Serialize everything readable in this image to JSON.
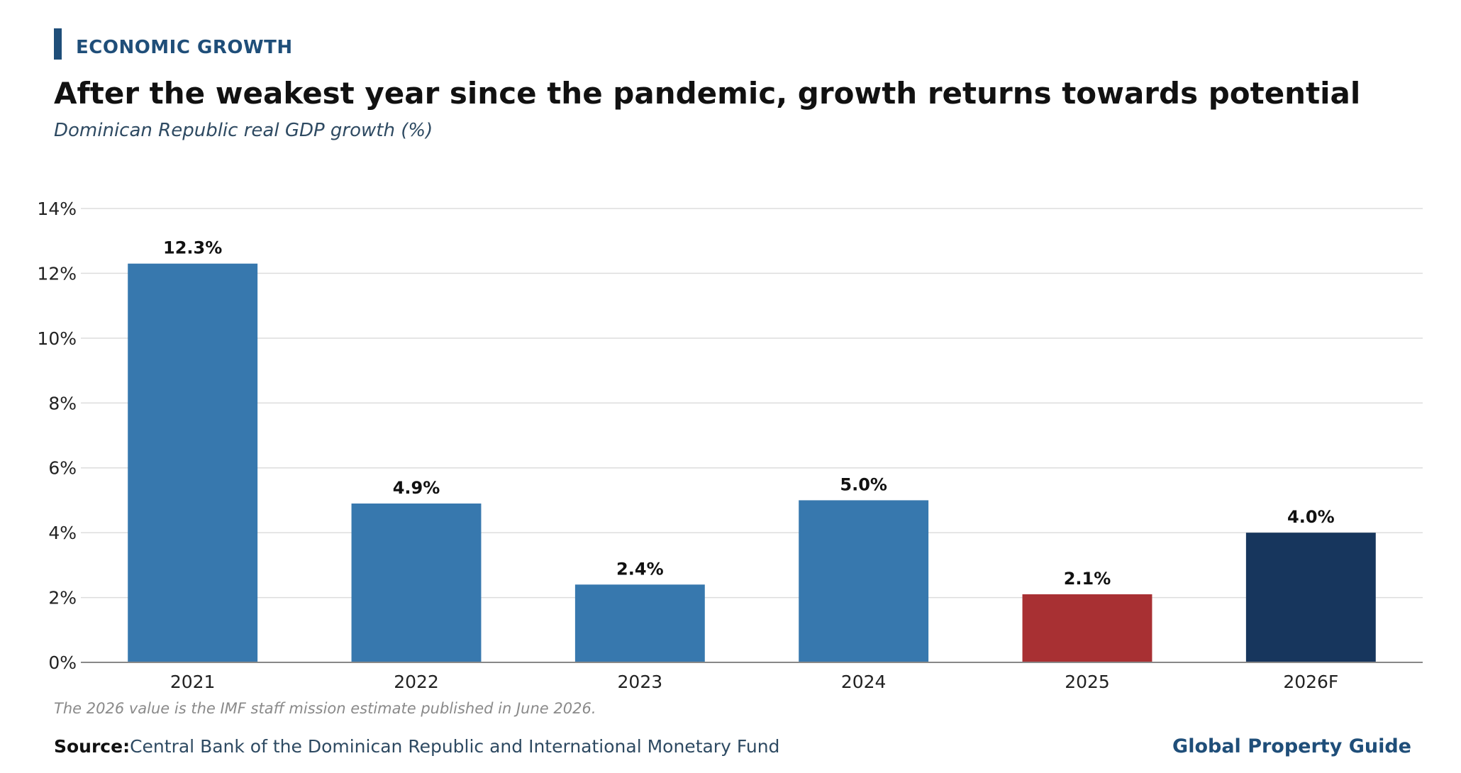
{
  "header": {
    "kicker": "ECONOMIC GROWTH",
    "title": "After the weakest year since the pandemic, growth returns towards potential",
    "subtitle": "Dominican Republic real GDP growth (%)"
  },
  "footer": {
    "note": "The 2026 value is the IMF staff mission estimate published in June 2026.",
    "source_label": "Source:",
    "source_text": "Central Bank of the Dominican Republic and International Monetary Fund",
    "brand": "Global Property Guide"
  },
  "colors": {
    "accent": "#1f4e79",
    "bar_default": "#3778ae",
    "bar_latest": "#a83033",
    "bar_forecast": "#17365d",
    "grid": "#dddddd",
    "axis": "#888888"
  },
  "chart_data": {
    "type": "bar",
    "title": "Dominican Republic real GDP growth (%)",
    "xlabel": "",
    "ylabel": "",
    "categories": [
      "2021",
      "2022",
      "2023",
      "2024",
      "2025",
      "2026F"
    ],
    "values": [
      12.3,
      4.9,
      2.4,
      5.0,
      2.1,
      4.0
    ],
    "data_labels": [
      "12.3%",
      "4.9%",
      "2.4%",
      "5.0%",
      "2.1%",
      "4.0%"
    ],
    "bar_colors": [
      "#3778ae",
      "#3778ae",
      "#3778ae",
      "#3778ae",
      "#a83033",
      "#17365d"
    ],
    "ylim": [
      0,
      14
    ],
    "yticks": [
      0,
      2,
      4,
      6,
      8,
      10,
      12,
      14
    ],
    "ytick_labels": [
      "0%",
      "2%",
      "4%",
      "6%",
      "8%",
      "10%",
      "12%",
      "14%"
    ],
    "grid": true,
    "legend": "none"
  }
}
